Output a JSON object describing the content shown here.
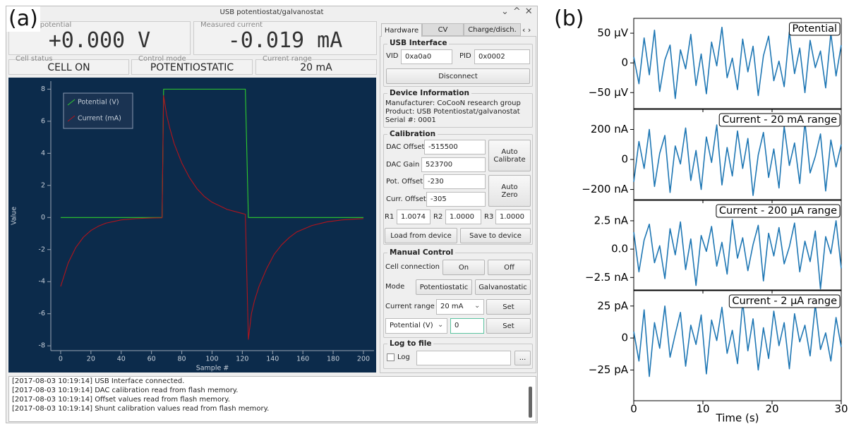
{
  "panel_labels": [
    "(a)",
    "(b)"
  ],
  "ui": {
    "window_title": "USB potentiostat/galvanostat",
    "readouts": [
      {
        "label": "Applied potential",
        "value": "+0.000 V"
      },
      {
        "label": "Measured current",
        "value": "-0.019 mA"
      }
    ],
    "status": [
      {
        "label": "Cell status",
        "value": "CELL ON"
      },
      {
        "label": "Control mode",
        "value": "POTENTIOSTATIC"
      },
      {
        "label": "Current range",
        "value": "20 mA"
      }
    ],
    "tabs": [
      "Hardware",
      "CV",
      "Charge/disch."
    ],
    "usb": {
      "title": "USB Interface",
      "vid_label": "VID",
      "vid": "0xa0a0",
      "pid_label": "PID",
      "pid": "0x0002",
      "button": "Disconnect"
    },
    "device": {
      "title": "Device Information",
      "lines": [
        "Manufacturer: CoCooN research group",
        "Product: USB Potentiostat/galvanostat",
        "Serial #: 0001"
      ]
    },
    "calibration": {
      "title": "Calibration",
      "fields": [
        {
          "label": "DAC Offset",
          "value": "-515500"
        },
        {
          "label": "DAC Gain",
          "value": "523700"
        },
        {
          "label": "Pot. Offset",
          "value": "-230"
        },
        {
          "label": "Curr. Offset",
          "value": "-305"
        }
      ],
      "auto_calibrate": "Auto Calibrate",
      "auto_zero": "Auto Zero",
      "r": [
        {
          "label": "R1",
          "value": "1.0074"
        },
        {
          "label": "R2",
          "value": "1.0000"
        },
        {
          "label": "R3",
          "value": "1.0000"
        }
      ],
      "load": "Load from device",
      "save": "Save to device"
    },
    "manual": {
      "title": "Manual Control",
      "cell_connection": "Cell connection",
      "on": "On",
      "off": "Off",
      "mode": "Mode",
      "potentiostatic": "Potentiostatic",
      "galvanostatic": "Galvanostatic",
      "current_range_label": "Current range",
      "current_range": "20 mA",
      "quantity": "Potential (V)",
      "input": "0",
      "set_buttons": [
        "Set",
        "Set"
      ]
    },
    "log": {
      "title": "Log to file",
      "checkbox": "Log",
      "browse": "..."
    },
    "messages": [
      "[2017-08-03 10:19:14] USB Interface connected.",
      "[2017-08-03 10:19:14] DAC calibration read from flash memory.",
      "[2017-08-03 10:19:14] Offset values read from flash memory.",
      "[2017-08-03 10:19:14] Shunt calibration values read from flash memory."
    ]
  },
  "chart_data": [
    {
      "type": "line",
      "xlabel": "Sample #",
      "ylabel": "Value",
      "legend": "upper left",
      "background": "#0c2b4b",
      "x": [
        0,
        5,
        10,
        15,
        20,
        25,
        30,
        40,
        50,
        60,
        67,
        68,
        70,
        72,
        75,
        80,
        85,
        90,
        95,
        100,
        110,
        120,
        122,
        124,
        126,
        128,
        131,
        136,
        141,
        146,
        151,
        156,
        166,
        176,
        186,
        200
      ],
      "series": [
        {
          "name": "Potential (V)",
          "color": "#2ecc2e",
          "values": [
            0,
            0,
            0,
            0,
            0,
            0,
            0,
            0,
            0,
            0,
            0,
            8,
            8,
            8,
            8,
            8,
            8,
            8,
            8,
            8,
            8,
            8,
            8,
            0,
            0,
            0,
            0,
            0,
            0,
            0,
            0,
            0,
            0,
            0,
            0,
            0
          ]
        },
        {
          "name": "Current (mA)",
          "color": "#b3141c",
          "values": [
            -4.3,
            -2.83,
            -1.87,
            -1.23,
            -0.81,
            -0.54,
            -0.35,
            -0.15,
            -0.07,
            -0.03,
            -0.02,
            7.6,
            6.4,
            5.6,
            4.6,
            3.4,
            2.5,
            1.8,
            1.3,
            0.95,
            0.5,
            0.25,
            0.2,
            -7.6,
            -6.0,
            -5.2,
            -4.3,
            -3.2,
            -2.3,
            -1.7,
            -1.25,
            -0.9,
            -0.5,
            -0.27,
            -0.15,
            -0.07
          ]
        }
      ],
      "xlim": [
        -6.5,
        207
      ],
      "ylim": [
        -8.3,
        8.5
      ],
      "xticks": [
        0,
        20,
        40,
        60,
        80,
        100,
        120,
        140,
        160,
        180,
        200
      ],
      "yticks": [
        -8,
        -6,
        -4,
        -2,
        0,
        2,
        4,
        6,
        8
      ]
    },
    {
      "type": "line",
      "title": "Potential",
      "x": [
        0,
        0.75,
        1.5,
        2.25,
        3,
        3.75,
        4.5,
        5.25,
        6,
        6.75,
        7.5,
        8.25,
        9,
        9.75,
        10.5,
        11.25,
        12,
        12.75,
        13.5,
        14.25,
        15,
        15.75,
        16.5,
        17.25,
        18,
        18.75,
        19.5,
        20.25,
        21,
        21.75,
        22.5,
        23.25,
        24,
        24.75,
        25.5,
        26.25,
        27,
        27.75,
        28.5,
        29.25,
        30
      ],
      "series": [
        {
          "color": "#1f77b4",
          "values": [
            10,
            -35,
            42,
            -20,
            55,
            -48,
            5,
            30,
            -60,
            22,
            -10,
            48,
            -38,
            15,
            -52,
            35,
            -5,
            60,
            -25,
            8,
            -45,
            40,
            -15,
            28,
            -55,
            12,
            45,
            -30,
            3,
            -40,
            52,
            -18,
            25,
            -50,
            38,
            -8,
            20,
            -42,
            50,
            -22,
            30
          ]
        }
      ],
      "xlim": [
        0,
        30
      ],
      "ylim": [
        -77,
        75
      ],
      "xticks": [
        0,
        10,
        20,
        30
      ],
      "yticks": [
        {
          "value": -50,
          "label": "−50 µV"
        },
        0,
        {
          "value": 50,
          "label": "50 µV"
        }
      ]
    },
    {
      "type": "line",
      "title": "Current - 20 mA range",
      "x": [
        0,
        0.75,
        1.5,
        2.25,
        3,
        3.75,
        4.5,
        5.25,
        6,
        6.75,
        7.5,
        8.25,
        9,
        9.75,
        10.5,
        11.25,
        12,
        12.75,
        13.5,
        14.25,
        15,
        15.75,
        16.5,
        17.25,
        18,
        18.75,
        19.5,
        20.25,
        21,
        21.75,
        22.5,
        23.25,
        24,
        24.75,
        25.5,
        26.25,
        27,
        27.75,
        28.5,
        29.25,
        30
      ],
      "series": [
        {
          "color": "#1f77b4",
          "values": [
            -150,
            120,
            -60,
            200,
            -180,
            40,
            160,
            -220,
            90,
            -30,
            210,
            -140,
            60,
            -200,
            150,
            -20,
            230,
            -170,
            80,
            -110,
            190,
            -60,
            140,
            -240,
            30,
            180,
            -120,
            70,
            -190,
            220,
            -40,
            110,
            -160,
            250,
            -90,
            20,
            170,
            -210,
            130,
            -50,
            100
          ]
        }
      ],
      "xlim": [
        0,
        30
      ],
      "ylim": [
        -268,
        334
      ],
      "xticks": [
        0,
        10,
        20,
        30
      ],
      "yticks": [
        {
          "value": -200,
          "label": "−200 nA"
        },
        0,
        {
          "value": 200,
          "label": "200 nA"
        }
      ]
    },
    {
      "type": "line",
      "title": "Current - 200 µA range",
      "x": [
        0,
        0.75,
        1.5,
        2.25,
        3,
        3.75,
        4.5,
        5.25,
        6,
        6.75,
        7.5,
        8.25,
        9,
        9.75,
        10.5,
        11.25,
        12,
        12.75,
        13.5,
        14.25,
        15,
        15.75,
        16.5,
        17.25,
        18,
        18.75,
        19.5,
        20.25,
        21,
        21.75,
        22.5,
        23.25,
        24,
        24.75,
        25.5,
        26.25,
        27,
        27.75,
        28.5,
        29.25,
        30
      ],
      "series": [
        {
          "color": "#1f77b4",
          "values": [
            1.5,
            -2.0,
            0.8,
            2.2,
            -1.2,
            0.3,
            -2.6,
            1.8,
            -0.5,
            2.4,
            -1.8,
            0.9,
            -3.2,
            1.2,
            -0.2,
            2.0,
            -1.5,
            0.6,
            -2.2,
            2.6,
            -0.8,
            1.0,
            -1.9,
            0.4,
            2.1,
            -2.8,
            1.4,
            -0.6,
            1.9,
            -1.3,
            0.2,
            2.3,
            -2.0,
            0.7,
            -1.1,
            1.6,
            -3.5,
            1.1,
            -0.4,
            2.5,
            -1.7
          ]
        }
      ],
      "xlim": [
        0,
        30
      ],
      "ylim": [
        -3.6,
        4.3
      ],
      "xticks": [
        0,
        10,
        20,
        30
      ],
      "yticks": [
        {
          "value": -2.5,
          "label": "−2.5 nA"
        },
        {
          "value": 0,
          "label": "0.0"
        },
        {
          "value": 2.5,
          "label": "2.5 nA"
        }
      ]
    },
    {
      "type": "line",
      "title": "Current - 2 µA range",
      "xlabel": "Time (s)",
      "x": [
        0,
        0.75,
        1.5,
        2.25,
        3,
        3.75,
        4.5,
        5.25,
        6,
        6.75,
        7.5,
        8.25,
        9,
        9.75,
        10.5,
        11.25,
        12,
        12.75,
        13.5,
        14.25,
        15,
        15.75,
        16.5,
        17.25,
        18,
        18.75,
        19.5,
        20.25,
        21,
        21.75,
        22.5,
        23.25,
        24,
        24.75,
        25.5,
        26.25,
        27,
        27.75,
        28.5,
        29.25,
        30
      ],
      "series": [
        {
          "color": "#1f77b4",
          "values": [
            5,
            -18,
            22,
            -30,
            12,
            -8,
            25,
            -15,
            3,
            20,
            -22,
            10,
            -5,
            18,
            -28,
            14,
            -2,
            24,
            -12,
            6,
            -20,
            28,
            -10,
            15,
            -25,
            8,
            -16,
            21,
            -6,
            12,
            -24,
            19,
            -3,
            10,
            -14,
            26,
            -9,
            4,
            -18,
            16,
            -7
          ]
        }
      ],
      "xlim": [
        0,
        30
      ],
      "ylim": [
        -49,
        37
      ],
      "xticks": [
        0,
        10,
        20,
        30
      ],
      "yticks": [
        {
          "value": -25,
          "label": "−25 pA"
        },
        0,
        {
          "value": 25,
          "label": "25 pA"
        }
      ]
    }
  ]
}
